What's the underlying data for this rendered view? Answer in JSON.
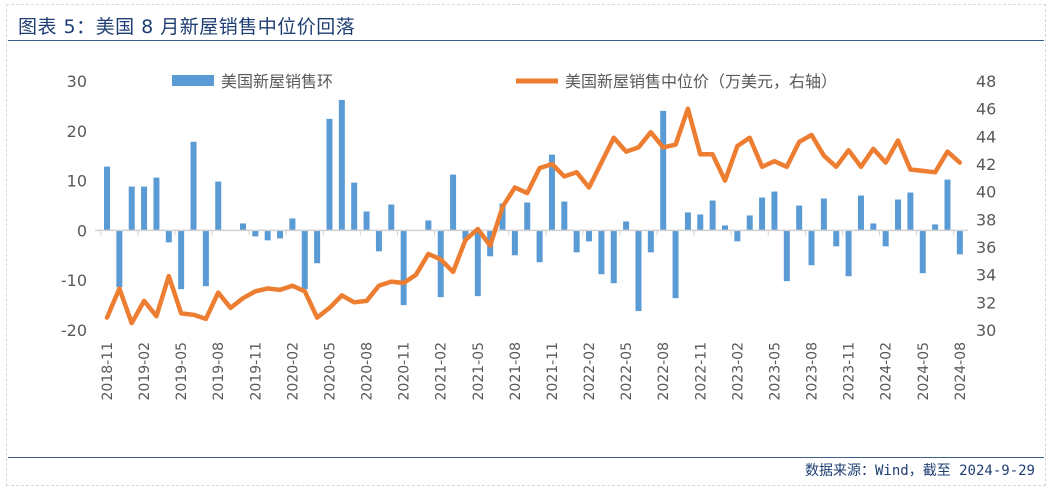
{
  "title": "图表 5：美国 8 月新屋销售中位价回落",
  "source": "数据来源：Wind，截至 2024-9-29",
  "colors": {
    "bar": "#5b9bd5",
    "line": "#ed7d31",
    "title": "#1f3f73"
  },
  "chart_data": {
    "type": "bar+line",
    "legend": [
      "美国新屋销售环",
      "美国新屋销售中位价（万美元，右轴）"
    ],
    "legend_placement": "top",
    "left_axis": {
      "ylim": [
        -20,
        30
      ],
      "ticks": [
        "30",
        "20",
        "10",
        "0",
        "-10",
        "-20"
      ]
    },
    "right_axis": {
      "ylim": [
        30,
        48
      ],
      "ticks": [
        "48",
        "46",
        "44",
        "42",
        "40",
        "38",
        "36",
        "34",
        "32",
        "30"
      ]
    },
    "x_ticks": [
      "2018-11",
      "2019-02",
      "2019-05",
      "2019-08",
      "2019-11",
      "2020-02",
      "2020-05",
      "2020-08",
      "2020-11",
      "2021-02",
      "2021-05",
      "2021-08",
      "2021-11",
      "2022-02",
      "2022-05",
      "2022-08",
      "2022-11",
      "2023-02",
      "2023-05",
      "2023-08",
      "2023-11",
      "2024-02",
      "2024-05",
      "2024-08"
    ],
    "x_start": "2018-11",
    "x_end": "2024-08",
    "series": [
      {
        "name": "美国新屋销售环",
        "type": "bar",
        "axis": "left",
        "values": [
          12.8,
          -11.4,
          8.8,
          8.8,
          10.6,
          -2.4,
          -11.8,
          17.8,
          -11.2,
          9.8,
          0,
          1.4,
          -1.2,
          -2,
          -1.6,
          2.4,
          -11.8,
          -6.6,
          22.4,
          26.2,
          9.6,
          3.8,
          -4.2,
          5.2,
          -15,
          0,
          2,
          -13.4,
          11.2,
          -1.8,
          -13.2,
          -5.2,
          5.4,
          -5,
          5.6,
          -6.4,
          15.2,
          5.8,
          -4.4,
          -2.2,
          -8.8,
          -10.6,
          1.8,
          -16.2,
          -4.4,
          24,
          -13.6,
          3.6,
          3.2,
          6,
          1,
          -2.2,
          3,
          6.6,
          7.8,
          -10.2,
          5,
          -7,
          6.4,
          -3.2,
          -9.2,
          7,
          1.4,
          -3.2,
          6.2,
          7.6,
          -8.6,
          1.2,
          10.2,
          -4.8
        ]
      },
      {
        "name": "美国新屋销售中位价（万美元，右轴）",
        "type": "line",
        "axis": "right",
        "values": [
          30.9,
          33.0,
          30.5,
          32.1,
          31.0,
          33.9,
          31.2,
          31.1,
          30.8,
          32.7,
          31.6,
          32.3,
          32.8,
          33.0,
          32.9,
          33.2,
          32.8,
          30.9,
          31.6,
          32.5,
          32.0,
          32.1,
          33.2,
          33.5,
          33.4,
          34.0,
          35.5,
          35.1,
          34.2,
          36.5,
          37.3,
          36.1,
          38.9,
          40.3,
          39.9,
          41.7,
          42.0,
          41.1,
          41.4,
          40.3,
          42.1,
          43.9,
          42.9,
          43.2,
          44.3,
          43.2,
          43.4,
          46.0,
          42.7,
          42.7,
          40.8,
          43.3,
          43.9,
          41.8,
          42.2,
          41.8,
          43.6,
          44.1,
          42.6,
          41.8,
          43.0,
          41.8,
          43.1,
          42.1,
          43.7,
          41.6,
          41.5,
          41.4,
          42.9,
          42.1
        ]
      }
    ]
  }
}
